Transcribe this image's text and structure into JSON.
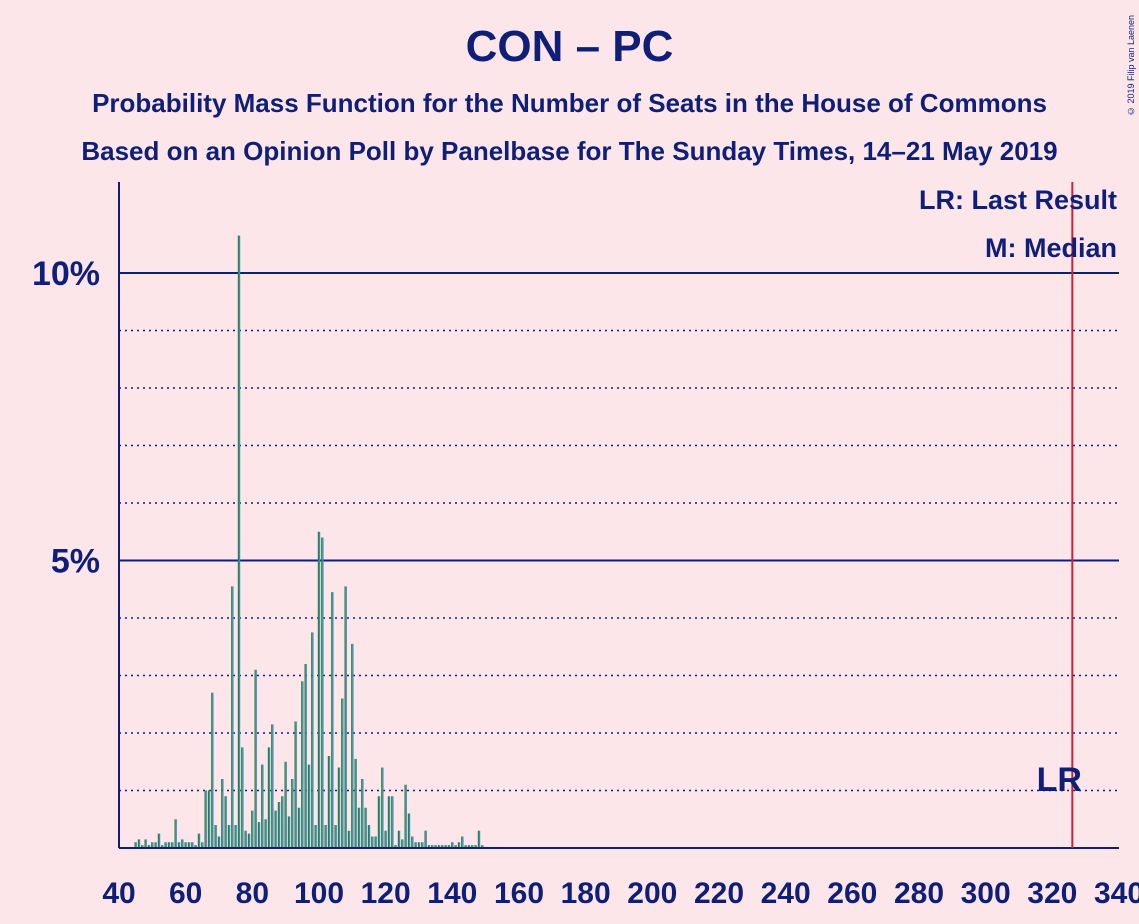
{
  "title": "CON – PC",
  "subtitle_1": "Probability Mass Function for the Number of Seats in the House of Commons",
  "subtitle_2": "Based on an Opinion Poll by Panelbase for The Sunday Times, 14–21 May 2019",
  "copyright": "© 2019 Filip van Laenen",
  "legend": {
    "last_result": "LR: Last Result",
    "median": "M: Median"
  },
  "last_result_marker": "LR",
  "colors": {
    "background": "#fde6ea",
    "axis_text": "#0f1f78",
    "bar_green": "#3a7d2c",
    "bar_blue": "#2f8fc8",
    "last_result_line": "#cc1f3a"
  },
  "chart_data": {
    "type": "bar",
    "title": "CON – PC",
    "xlabel": "",
    "ylabel": "",
    "xlim": [
      40,
      340
    ],
    "ylim": [
      0,
      11.5
    ],
    "x_ticks": [
      40,
      60,
      80,
      100,
      120,
      140,
      160,
      180,
      200,
      220,
      240,
      260,
      280,
      300,
      320,
      340
    ],
    "y_ticks_labeled": [
      {
        "value": 5,
        "label": "5%"
      },
      {
        "value": 10,
        "label": "10%"
      }
    ],
    "y_gridlines_dotted": [
      1,
      2,
      3,
      4,
      6,
      7,
      8,
      9
    ],
    "last_result": 326,
    "series": [
      {
        "x": [
          45,
          46,
          47,
          48,
          49,
          50,
          51,
          52,
          53,
          54,
          55,
          56,
          57,
          58,
          59,
          60,
          61,
          62,
          63,
          64,
          65,
          66,
          67,
          68,
          69,
          70,
          71,
          72,
          73,
          74,
          75,
          76,
          77,
          78,
          79,
          80,
          81,
          82,
          83,
          84,
          85,
          86,
          87,
          88,
          89,
          90,
          91,
          92,
          93,
          94,
          95,
          96,
          97,
          98,
          99,
          100,
          101,
          102,
          103,
          104,
          105,
          106,
          107,
          108,
          109,
          110,
          111,
          112,
          113,
          114,
          115,
          116,
          117,
          118,
          119,
          120,
          121,
          122,
          123,
          124,
          125,
          126,
          127,
          128,
          129,
          130,
          131,
          132,
          133,
          134,
          135,
          136,
          137,
          138,
          139,
          140,
          141,
          142,
          143,
          144,
          145,
          146,
          147,
          148,
          149,
          150
        ],
        "values": [
          0.1,
          0.15,
          0.05,
          0.15,
          0.05,
          0.1,
          0.1,
          0.25,
          0.05,
          0.1,
          0.1,
          0.1,
          0.5,
          0.1,
          0.15,
          0.1,
          0.1,
          0.1,
          0.05,
          0.25,
          0.1,
          1.0,
          1.0,
          2.7,
          0.4,
          0.2,
          1.2,
          0.9,
          0.4,
          4.55,
          0.4,
          10.65,
          1.75,
          0.3,
          0.25,
          0.65,
          3.1,
          0.45,
          1.45,
          0.5,
          1.75,
          2.15,
          0.65,
          0.8,
          0.9,
          1.5,
          0.55,
          1.2,
          2.2,
          0.7,
          2.9,
          3.2,
          1.45,
          3.75,
          0.4,
          5.5,
          5.4,
          0.4,
          1.6,
          4.45,
          0.4,
          1.4,
          2.6,
          4.55,
          0.3,
          3.55,
          1.55,
          0.7,
          1.2,
          0.7,
          0.4,
          0.2,
          0.2,
          0.9,
          1.4,
          0.3,
          0.9,
          0.9,
          0.05,
          0.3,
          0.15,
          1.1,
          0.6,
          0.2,
          0.1,
          0.1,
          0.1,
          0.3,
          0.05,
          0.05,
          0.05,
          0.05,
          0.05,
          0.05,
          0.05,
          0.1,
          0.05,
          0.1,
          0.2,
          0.05,
          0.05,
          0.05,
          0.05,
          0.3,
          0.05,
          0.02
        ]
      }
    ]
  }
}
